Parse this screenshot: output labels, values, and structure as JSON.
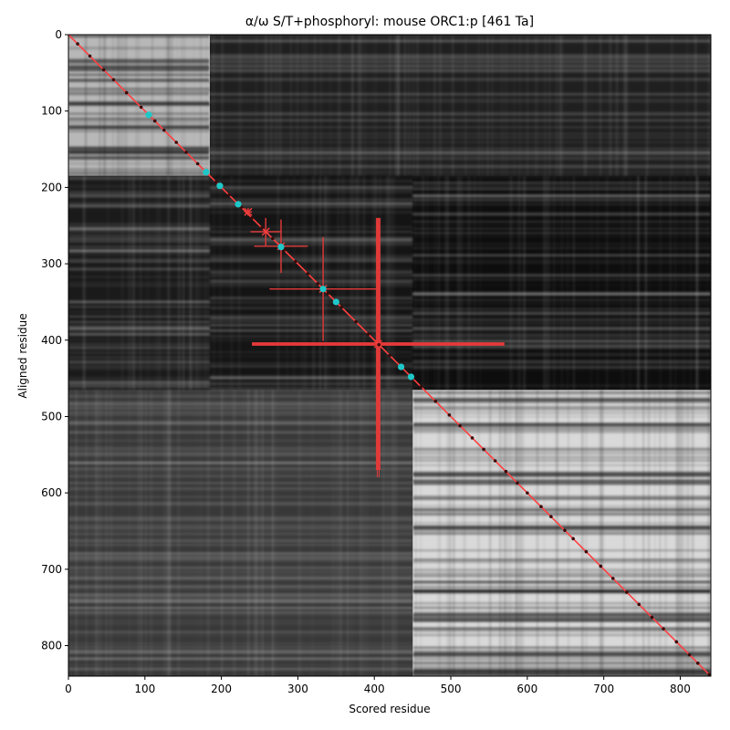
{
  "chart_data": {
    "type": "heatmap",
    "title": "α/ω S/T+phosphoryl: mouse ORC1:p [461 Ta]",
    "xlabel": "Scored residue",
    "ylabel": "Aligned residue",
    "xlim": [
      0,
      840
    ],
    "ylim": [
      840,
      0
    ],
    "xticks": [
      0,
      100,
      200,
      300,
      400,
      500,
      600,
      700,
      800
    ],
    "yticks": [
      0,
      100,
      200,
      300,
      400,
      500,
      600,
      700,
      800
    ],
    "colormap": "grayscale",
    "blocks": [
      {
        "x": [
          0,
          185
        ],
        "y": [
          0,
          185
        ],
        "level": 0.72
      },
      {
        "x": [
          450,
          840
        ],
        "y": [
          465,
          840
        ],
        "level": 0.85
      },
      {
        "x": [
          0,
          450
        ],
        "y": [
          465,
          840
        ],
        "level": 0.22
      },
      {
        "x": [
          185,
          840
        ],
        "y": [
          0,
          185
        ],
        "level": 0.12
      },
      {
        "x": [
          185,
          450
        ],
        "y": [
          185,
          465
        ],
        "level": 0.08
      },
      {
        "x": [
          450,
          840
        ],
        "y": [
          185,
          465
        ],
        "level": 0.05
      },
      {
        "x": [
          0,
          185
        ],
        "y": [
          185,
          465
        ],
        "level": 0.1
      }
    ],
    "diagonal": {
      "from": [
        0,
        0
      ],
      "to": [
        840,
        840
      ],
      "color": "#ff4040"
    },
    "cyan_points": [
      [
        105,
        105
      ],
      [
        180,
        180
      ],
      [
        198,
        198
      ],
      [
        222,
        222
      ],
      [
        278,
        278
      ],
      [
        333,
        333
      ],
      [
        350,
        350
      ],
      [
        435,
        435
      ],
      [
        448,
        448
      ]
    ],
    "error_crosses": [
      {
        "x": 235,
        "y": 232,
        "xerr": 5,
        "yerr": 5
      },
      {
        "x": 258,
        "y": 258,
        "xerr": 20,
        "yerr": 18
      },
      {
        "x": 278,
        "y": 277,
        "xerr": 35,
        "yerr": 35
      },
      {
        "x": 333,
        "y": 333,
        "xerr": 70,
        "yerr": 68
      },
      {
        "x": 405,
        "y": 405,
        "xerr": 165,
        "yerr": 165
      }
    ],
    "colors": {
      "diagonal": "#ff4040",
      "cyan": "#1fc8c8",
      "cross": "#e53a3a",
      "dots": "#3a0a0a"
    }
  }
}
